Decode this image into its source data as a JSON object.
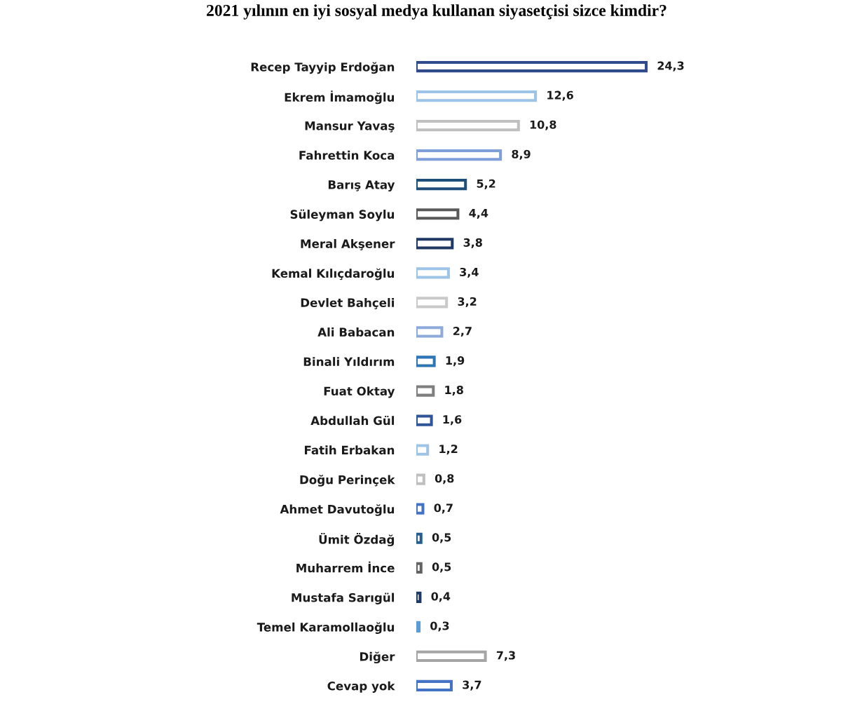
{
  "chart_data": {
    "type": "bar",
    "orientation": "horizontal",
    "title": "2021 yılının en iyi sosyal medya kullanan siyasetçisi sizce kimdir?",
    "categories": [
      "Recep Tayyip Erdoğan",
      "Ekrem İmamoğlu",
      "Mansur Yavaş",
      "Fahrettin Koca",
      "Barış Atay",
      "Süleyman Soylu",
      "Meral Akşener",
      "Kemal Kılıçdaroğlu",
      "Devlet Bahçeli",
      "Ali Babacan",
      "Binali Yıldırım",
      "Fuat Oktay",
      "Abdullah Gül",
      "Fatih Erbakan",
      "Doğu Perinçek",
      "Ahmet Davutoğlu",
      "Ümit Özdağ",
      "Muharrem İnce",
      "Mustafa Sarıgül",
      "Temel Karamollaoğlu",
      "Diğer",
      "Cevap yok"
    ],
    "values": [
      24.3,
      12.6,
      10.8,
      8.9,
      5.2,
      4.4,
      3.8,
      3.4,
      3.2,
      2.7,
      1.9,
      1.8,
      1.6,
      1.2,
      0.8,
      0.7,
      0.5,
      0.5,
      0.4,
      0.3,
      7.3,
      3.7
    ],
    "value_labels": [
      "24,3",
      "12,6",
      "10,8",
      "8,9",
      "5,2",
      "4,4",
      "3,8",
      "3,4",
      "3,2",
      "2,7",
      "1,9",
      "1,8",
      "1,6",
      "1,2",
      "0,8",
      "0,7",
      "0,5",
      "0,5",
      "0,4",
      "0,3",
      "7,3",
      "3,7"
    ],
    "colors": [
      "#2f4b8c",
      "#9dc3e6",
      "#bfbfbf",
      "#7f9fd8",
      "#1f4e79",
      "#595959",
      "#1f3864",
      "#9dc3e6",
      "#c9c9c9",
      "#8eaadb",
      "#2e75b6",
      "#7f7f7f",
      "#2f5597",
      "#9dc3e6",
      "#bfbfbf",
      "#4472c4",
      "#255e91",
      "#636363",
      "#203864",
      "#5b9bd5",
      "#a5a5a5",
      "#4472c4"
    ],
    "tick_labels": "y"
  }
}
